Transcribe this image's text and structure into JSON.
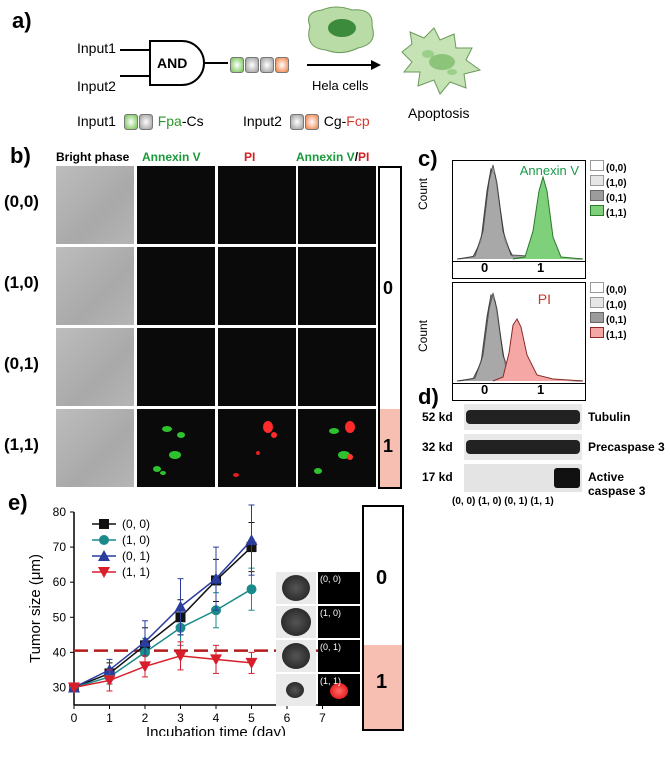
{
  "panel_a": {
    "label": "a)",
    "input1": "Input1",
    "input2": "Input2",
    "gate": "AND",
    "cells": "Hela cells",
    "outcome": "Apoptosis",
    "legend1_prefix": "Input1",
    "legend1_fpa": "Fpa",
    "legend1_cs": "-Cs",
    "legend2_prefix": "Input2",
    "legend2_cg": "Cg-",
    "legend2_fcp": "Fcp"
  },
  "panel_b": {
    "label": "b)",
    "col_bright": "Bright phase",
    "col_annexin": "Annexin V",
    "col_pi": "PI",
    "col_merge_a": "Annexin V",
    "col_merge_slash": "/",
    "col_merge_b": "PI",
    "rows": [
      "(0,0)",
      "(1,0)",
      "(0,1)",
      "(1,1)"
    ],
    "output_zero": "0",
    "output_one": "1"
  },
  "panel_c": {
    "label": "c)",
    "ylabel": "Count",
    "top_title": "Annexin V",
    "bottom_title": "PI",
    "x0": "0",
    "x1": "1",
    "legend": [
      "(0,0)",
      "(1,0)",
      "(0,1)",
      "(1,1)"
    ]
  },
  "panel_d": {
    "label": "d)",
    "rows": [
      {
        "kd": "52 kd",
        "name": "Tubulin"
      },
      {
        "kd": "32 kd",
        "name": "Precaspase 3"
      },
      {
        "kd": "17 kd",
        "name": "Active caspase 3"
      }
    ],
    "lanes": "(0, 0) (1, 0) (0, 1) (1, 1)"
  },
  "panel_e": {
    "label": "e)",
    "output_zero": "0",
    "output_one": "1",
    "inset_labels": [
      "(0, 0)",
      "(1, 0)",
      "(0, 1)",
      "(1, 1)"
    ]
  },
  "chart_data": {
    "type": "line",
    "xlabel": "Incubation time (day)",
    "ylabel": "Tumor size (μm)",
    "xlim": [
      0,
      8
    ],
    "ylim": [
      25,
      80
    ],
    "xticks": [
      0,
      1,
      2,
      3,
      4,
      5,
      6,
      7
    ],
    "yticks": [
      30,
      40,
      50,
      60,
      70,
      80
    ],
    "threshold": 40.5,
    "x": [
      0,
      1,
      2,
      3,
      4,
      5
    ],
    "series": [
      {
        "name": "(0, 0)",
        "color": "#111111",
        "marker": "square",
        "values": [
          30,
          34,
          42,
          50,
          60.5,
          70
        ],
        "err": [
          0.5,
          3,
          5,
          5,
          6,
          7
        ]
      },
      {
        "name": "(1, 0)",
        "color": "#1a8a8a",
        "marker": "circle",
        "values": [
          30,
          33,
          40,
          47,
          52,
          58
        ],
        "err": [
          0.5,
          2,
          4,
          5,
          5,
          6
        ]
      },
      {
        "name": "(0, 1)",
        "color": "#2a3c9e",
        "marker": "triangle-up",
        "values": [
          30,
          35,
          43,
          53,
          61,
          72
        ],
        "err": [
          0.5,
          3,
          6,
          8,
          9,
          10
        ]
      },
      {
        "name": "(1, 1)",
        "color": "#d81e2a",
        "marker": "triangle-down",
        "values": [
          30,
          32,
          36,
          39,
          38,
          37
        ],
        "err": [
          0.5,
          3,
          3,
          4,
          4,
          3
        ]
      }
    ]
  }
}
